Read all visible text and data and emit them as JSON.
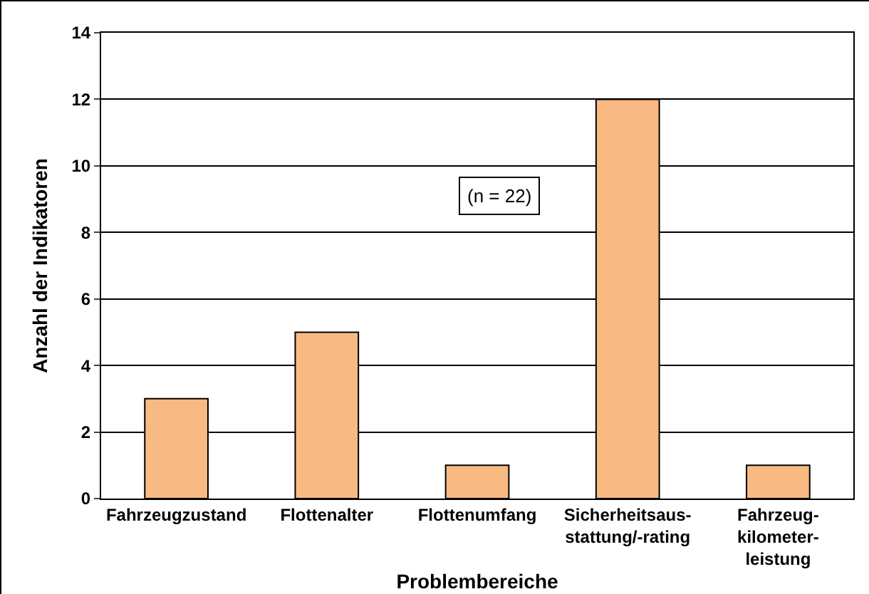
{
  "chart_data": {
    "type": "bar",
    "xlabel": "Problembereiche",
    "ylabel": "Anzahl der Indikatoren",
    "categories": [
      "Fahrzeugzustand",
      "Flottenalter",
      "Flottenumfang",
      "Sicherheitsaus-\nstattung/-rating",
      "Fahrzeug-\nkilometer-\nleistung"
    ],
    "values": [
      3,
      5,
      1,
      12,
      1
    ],
    "color": "#f9b982",
    "ylim": [
      0,
      14
    ],
    "yticks": [
      0,
      2,
      4,
      6,
      8,
      10,
      12,
      14
    ],
    "grid": "y",
    "annotations": [
      "(n = 22)"
    ]
  }
}
